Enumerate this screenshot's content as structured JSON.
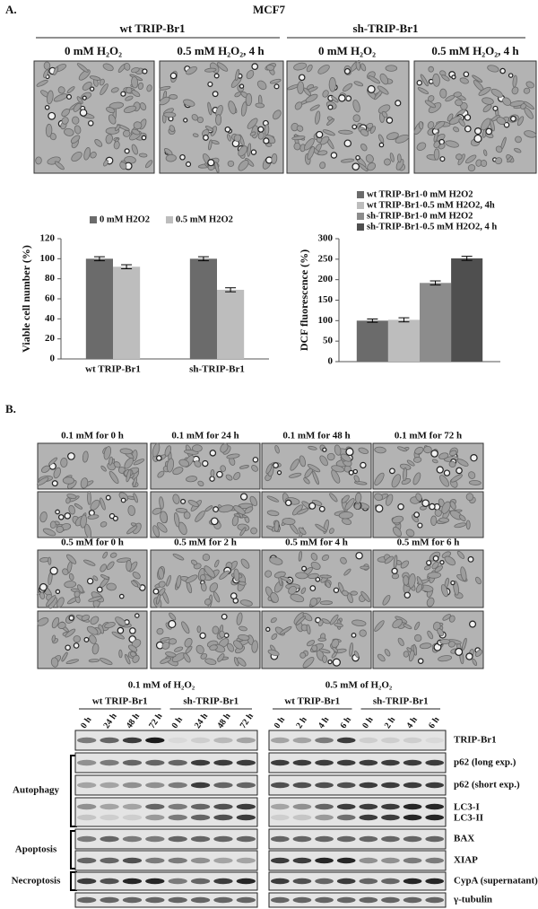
{
  "panel_a": {
    "label": "A.",
    "cell_line": "MCF7",
    "groups": [
      "wt TRIP-Br1",
      "sh-TRIP-Br1"
    ],
    "conditions": [
      "0 mM H₂O₂",
      "0.5 mM H₂O₂, 4 h",
      "0 mM H₂O₂",
      "0.5 mM H₂O₂, 4 h"
    ]
  },
  "chart_data": [
    {
      "type": "bar",
      "ylabel": "Viable cell number (%)",
      "categories": [
        "wt TRIP-Br1",
        "sh-TRIP-Br1"
      ],
      "series": [
        {
          "name": "0 mM H2O2",
          "color": "#6b6b6b",
          "values": [
            100,
            100
          ],
          "errors": [
            2,
            2
          ]
        },
        {
          "name": "0.5 mM  H2O2",
          "color": "#bdbdbd",
          "values": [
            92,
            69
          ],
          "errors": [
            2,
            2
          ]
        }
      ],
      "ylim": [
        0,
        120
      ],
      "yticks": [
        0,
        20,
        40,
        60,
        80,
        100,
        120
      ],
      "legend": "top",
      "grid": false
    },
    {
      "type": "bar",
      "ylabel": "DCF fluorescence (%)",
      "categories": [
        null
      ],
      "series": [
        {
          "name": "wt TRIP-Br1-0 mM H2O2",
          "color": "#6b6b6b",
          "values": [
            100
          ],
          "errors": [
            4
          ]
        },
        {
          "name": "wt TRIP-Br1-0.5 mM H2O2, 4h",
          "color": "#bdbdbd",
          "values": [
            102
          ],
          "errors": [
            5
          ]
        },
        {
          "name": "sh-TRIP-Br1-0 mM H2O2",
          "color": "#8c8c8c",
          "values": [
            192
          ],
          "errors": [
            5
          ]
        },
        {
          "name": "sh-TRIP-Br1-0.5 mM H2O2, 4 h",
          "color": "#4f4f4f",
          "values": [
            252
          ],
          "errors": [
            5
          ]
        }
      ],
      "ylim": [
        0,
        300
      ],
      "yticks": [
        0,
        50,
        100,
        150,
        200,
        250,
        300
      ],
      "legend": "top-left",
      "grid": false
    }
  ],
  "panel_b": {
    "label": "B.",
    "low_dose": [
      "0.1 mM  for 0 h",
      "0.1 mM  for 24 h",
      "0.1 mM  for 48 h",
      "0.1 mM  for 72 h"
    ],
    "high_dose": [
      "0.5 mM  for 0 h",
      "0.5 mM  for 2 h",
      "0.5 mM  for 4 h",
      "0.5 mM  for 6 h"
    ]
  },
  "blots": {
    "left": {
      "title": "0.1 mM of H₂O₂",
      "groups": [
        "wt TRIP-Br1",
        "sh-TRIP-Br1"
      ],
      "lanes": [
        "0 h",
        "24 h",
        "48 h",
        "72 h",
        "0 h",
        "24 h",
        "48 h",
        "72 h"
      ]
    },
    "right": {
      "title": "0.5 mM of H₂O₂",
      "groups": [
        "wt TRIP-Br1",
        "sh-TRIP-Br1"
      ],
      "lanes": [
        "0 h",
        "2 h",
        "4 h",
        "6 h",
        "0 h",
        "2 h",
        "4 h",
        "6 h"
      ]
    },
    "proteins": [
      "TRIP-Br1",
      "p62 (long exp.)",
      "p62 (short exp.)",
      "LC3-I",
      "LC3-II",
      "BAX",
      "XIAP",
      "CypA  (supernatant)",
      "γ-tubulin"
    ],
    "processes": [
      "Autophagy",
      "Apoptosis",
      "Necroptosis"
    ]
  }
}
